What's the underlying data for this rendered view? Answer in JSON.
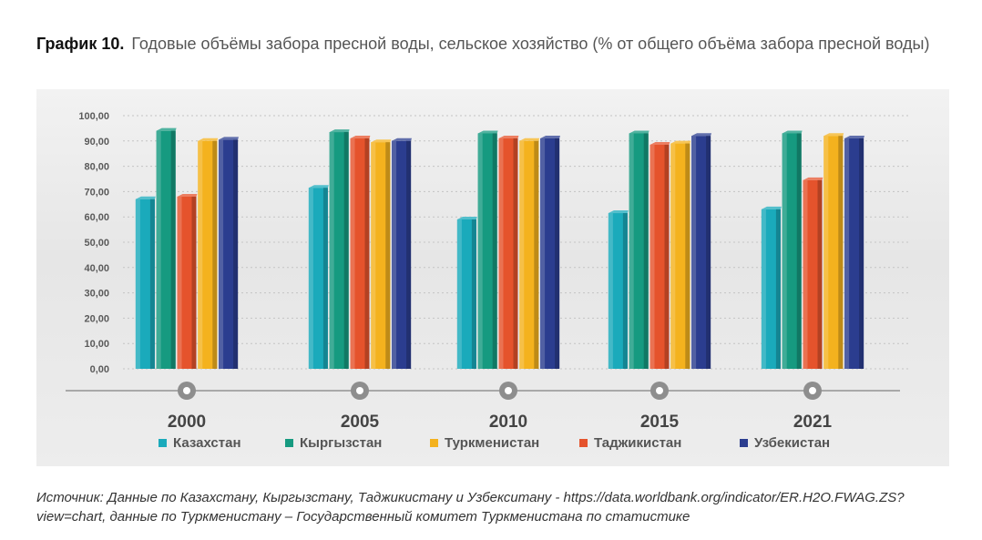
{
  "figure": {
    "label": "График 10.",
    "title": "Годовые объёмы забора пресной воды, сельское хозяйство (% от общего объёма забора пресной воды)"
  },
  "chart_data": {
    "type": "bar",
    "categories": [
      "2000",
      "2005",
      "2010",
      "2015",
      "2021"
    ],
    "series": [
      {
        "name": "Казахстан",
        "color": "#1aaabb",
        "values": [
          67.0,
          71.5,
          59.0,
          61.5,
          63.0
        ]
      },
      {
        "name": "Кыргызстан",
        "color": "#169a80",
        "values": [
          94.0,
          93.5,
          93.0,
          93.0,
          93.0
        ]
      },
      {
        "name": "Таджикистан",
        "color": "#e5532c",
        "values": [
          68.0,
          91.0,
          91.0,
          88.5,
          74.5
        ]
      },
      {
        "name": "Туркменистан",
        "color": "#f4b21e",
        "values": [
          90.0,
          89.5,
          90.0,
          89.0,
          92.0
        ]
      },
      {
        "name": "Узбекистан",
        "color": "#2b3d8f",
        "values": [
          90.5,
          90.0,
          91.0,
          92.0,
          91.0
        ]
      }
    ],
    "legend_order": [
      "Казахстан",
      "Кыргызстан",
      "Туркменистан",
      "Таджикистан",
      "Узбекистан"
    ],
    "ylim": [
      0,
      100
    ],
    "yticks": [
      "0,00",
      "10,00",
      "20,00",
      "30,00",
      "40,00",
      "50,00",
      "60,00",
      "70,00",
      "80,00",
      "90,00",
      "100,00"
    ],
    "grid": true,
    "legend_position": "bottom"
  },
  "source": {
    "text": "Источник: Данные по Казахстану, Кыргызстану, Таджикистану и Узбекситану - https://data.worldbank.org/indicator/ER.H2O.FWAG.ZS?view=chart, данные по Туркменистану – Государственный комитет Туркменистана по статистике"
  }
}
